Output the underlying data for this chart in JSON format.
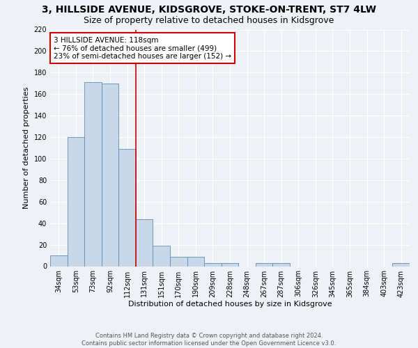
{
  "title": "3, HILLSIDE AVENUE, KIDSGROVE, STOKE-ON-TRENT, ST7 4LW",
  "subtitle": "Size of property relative to detached houses in Kidsgrove",
  "xlabel": "Distribution of detached houses by size in Kidsgrove",
  "ylabel": "Number of detached properties",
  "footer_line1": "Contains HM Land Registry data © Crown copyright and database right 2024.",
  "footer_line2": "Contains public sector information licensed under the Open Government Licence v3.0.",
  "bar_labels": [
    "34sqm",
    "53sqm",
    "73sqm",
    "92sqm",
    "112sqm",
    "131sqm",
    "151sqm",
    "170sqm",
    "190sqm",
    "209sqm",
    "228sqm",
    "248sqm",
    "267sqm",
    "287sqm",
    "306sqm",
    "326sqm",
    "345sqm",
    "365sqm",
    "384sqm",
    "403sqm",
    "423sqm"
  ],
  "bar_values": [
    10,
    120,
    171,
    170,
    109,
    44,
    19,
    9,
    9,
    3,
    3,
    0,
    3,
    3,
    0,
    0,
    0,
    0,
    0,
    0,
    3
  ],
  "bar_color": "#c8d8e8",
  "bar_edge_color": "#5a8db5",
  "vline_x": 4.5,
  "vline_color": "#cc0000",
  "annotation_text": "3 HILLSIDE AVENUE: 118sqm\n← 76% of detached houses are smaller (499)\n23% of semi-detached houses are larger (152) →",
  "annotation_box_color": "#ffffff",
  "annotation_box_edge": "#cc0000",
  "ylim": [
    0,
    220
  ],
  "yticks": [
    0,
    20,
    40,
    60,
    80,
    100,
    120,
    140,
    160,
    180,
    200,
    220
  ],
  "bg_color": "#eef2f7",
  "plot_bg_color": "#eef2f7",
  "title_fontsize": 10,
  "subtitle_fontsize": 9,
  "annot_fontsize": 7.5,
  "ylabel_fontsize": 8,
  "xlabel_fontsize": 8,
  "tick_fontsize": 7,
  "footer_fontsize": 6
}
